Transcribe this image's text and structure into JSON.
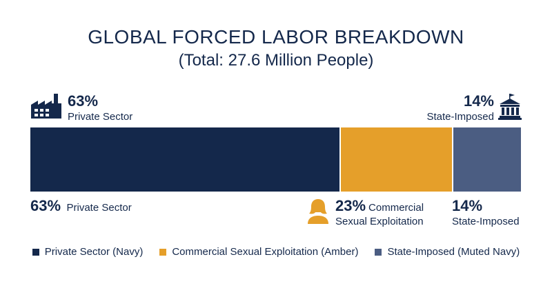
{
  "chart_data": {
    "type": "bar",
    "orientation": "horizontal-stacked",
    "title": "GLOBAL FORCED LABOR BREAKDOWN",
    "subtitle": "(Total: 27.6 Million People)",
    "series": [
      {
        "name": "Private Sector",
        "value": 63,
        "value_label": "63%",
        "color": "#14284b"
      },
      {
        "name": "Commercial Sexual Exploitation",
        "value": 23,
        "value_label": "23%",
        "color": "#e59f2a"
      },
      {
        "name": "State-Imposed",
        "value": 14,
        "value_label": "14%",
        "color": "#4b5d82"
      }
    ],
    "legend": [
      {
        "label": "Private Sector (Navy)",
        "color": "#14284b"
      },
      {
        "label": "Commercial Sexual Exploitation (Amber)",
        "color": "#e59f2a"
      },
      {
        "label": "State-Imposed (Muted Navy)",
        "color": "#4b5d82"
      }
    ],
    "legend_position": "bottom"
  },
  "callouts": {
    "top_left": {
      "pct": "63%",
      "label": "Private Sector",
      "icon": "factory-icon"
    },
    "top_right": {
      "pct": "14%",
      "label": "State-Imposed",
      "icon": "government-building-icon"
    },
    "bottom": [
      {
        "pct": "63%",
        "label": "Private Sector"
      },
      {
        "pct": "23%",
        "label_line1": "Commercial",
        "label_line2": "Sexual Exploitation",
        "icon": "woman-icon"
      },
      {
        "pct": "14%",
        "label": "State-Imposed"
      }
    ]
  }
}
